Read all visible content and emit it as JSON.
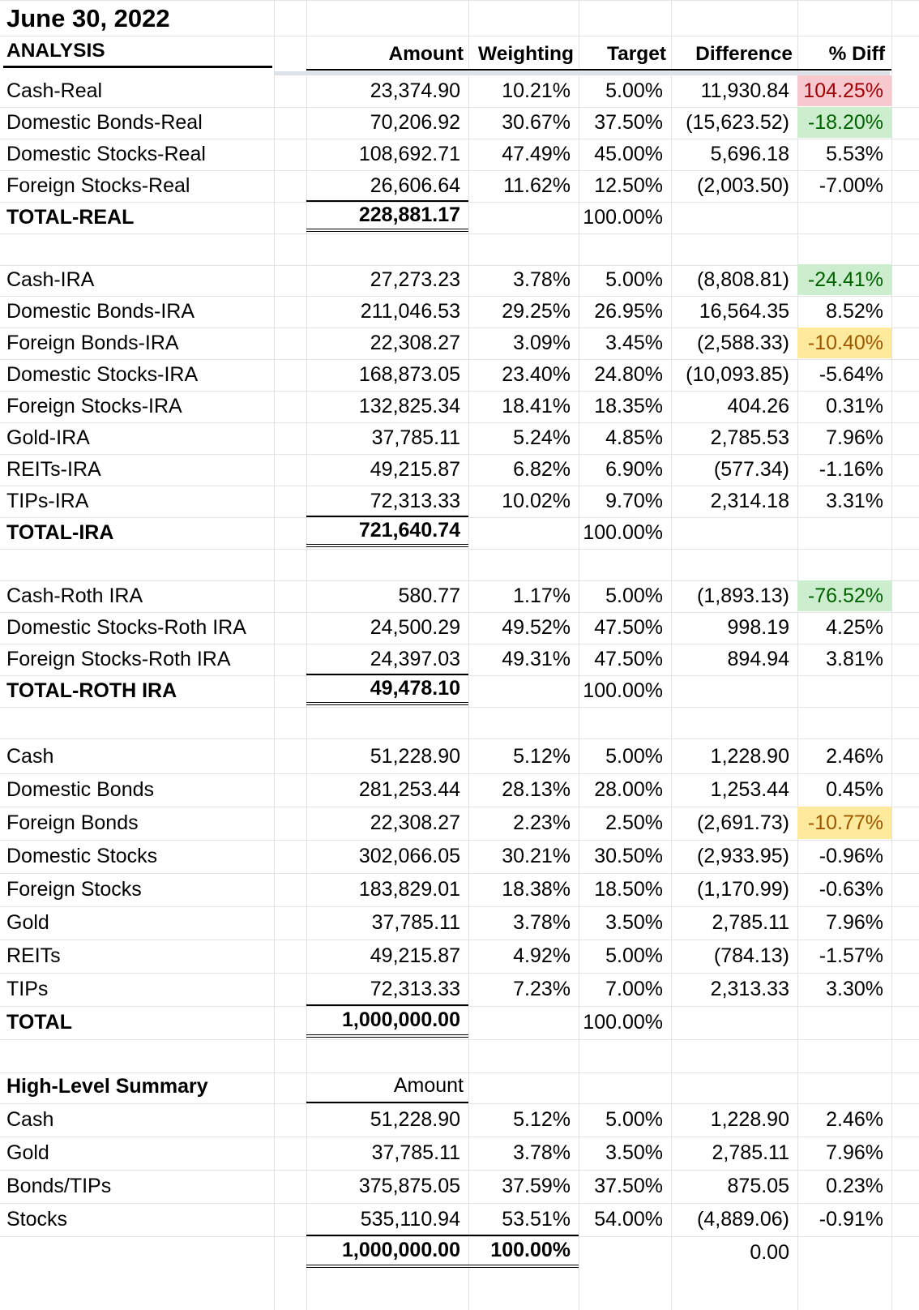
{
  "title": "June 30, 2022",
  "analysis_label": "ANALYSIS",
  "headers": {
    "amount": "Amount",
    "weighting": "Weighting",
    "target": "Target",
    "difference": "Difference",
    "pct_diff": "% Diff"
  },
  "sections": [
    {
      "rows": [
        {
          "label": "Cash-Real",
          "amount": "23,374.90",
          "weighting": "10.21%",
          "target": "5.00%",
          "difference": "11,930.84",
          "pct": "104.25%",
          "hl": "red"
        },
        {
          "label": "Domestic Bonds-Real",
          "amount": "70,206.92",
          "weighting": "30.67%",
          "target": "37.50%",
          "difference": "(15,623.52)",
          "pct": "-18.20%",
          "hl": "green"
        },
        {
          "label": "Domestic Stocks-Real",
          "amount": "108,692.71",
          "weighting": "47.49%",
          "target": "45.00%",
          "difference": "5,696.18",
          "pct": "5.53%",
          "hl": ""
        },
        {
          "label": "Foreign Stocks-Real",
          "amount": "26,606.64",
          "weighting": "11.62%",
          "target": "12.50%",
          "difference": "(2,003.50)",
          "pct": "-7.00%",
          "hl": ""
        }
      ],
      "total": {
        "label": "TOTAL-REAL",
        "amount": "228,881.17",
        "target": "100.00%"
      }
    },
    {
      "rows": [
        {
          "label": "Cash-IRA",
          "amount": "27,273.23",
          "weighting": "3.78%",
          "target": "5.00%",
          "difference": "(8,808.81)",
          "pct": "-24.41%",
          "hl": "green"
        },
        {
          "label": "Domestic Bonds-IRA",
          "amount": "211,046.53",
          "weighting": "29.25%",
          "target": "26.95%",
          "difference": "16,564.35",
          "pct": "8.52%",
          "hl": ""
        },
        {
          "label": "Foreign Bonds-IRA",
          "amount": "22,308.27",
          "weighting": "3.09%",
          "target": "3.45%",
          "difference": "(2,588.33)",
          "pct": "-10.40%",
          "hl": "yellow"
        },
        {
          "label": "Domestic Stocks-IRA",
          "amount": "168,873.05",
          "weighting": "23.40%",
          "target": "24.80%",
          "difference": "(10,093.85)",
          "pct": "-5.64%",
          "hl": ""
        },
        {
          "label": "Foreign Stocks-IRA",
          "amount": "132,825.34",
          "weighting": "18.41%",
          "target": "18.35%",
          "difference": "404.26",
          "pct": "0.31%",
          "hl": ""
        },
        {
          "label": "Gold-IRA",
          "amount": "37,785.11",
          "weighting": "5.24%",
          "target": "4.85%",
          "difference": "2,785.53",
          "pct": "7.96%",
          "hl": ""
        },
        {
          "label": "REITs-IRA",
          "amount": "49,215.87",
          "weighting": "6.82%",
          "target": "6.90%",
          "difference": "(577.34)",
          "pct": "-1.16%",
          "hl": ""
        },
        {
          "label": "TIPs-IRA",
          "amount": "72,313.33",
          "weighting": "10.02%",
          "target": "9.70%",
          "difference": "2,314.18",
          "pct": "3.31%",
          "hl": ""
        }
      ],
      "total": {
        "label": "TOTAL-IRA",
        "amount": "721,640.74",
        "target": "100.00%"
      }
    },
    {
      "rows": [
        {
          "label": "Cash-Roth IRA",
          "amount": "580.77",
          "weighting": "1.17%",
          "target": "5.00%",
          "difference": "(1,893.13)",
          "pct": "-76.52%",
          "hl": "green"
        },
        {
          "label": "Domestic Stocks-Roth IRA",
          "amount": "24,500.29",
          "weighting": "49.52%",
          "target": "47.50%",
          "difference": "998.19",
          "pct": "4.25%",
          "hl": ""
        },
        {
          "label": "Foreign Stocks-Roth IRA",
          "amount": "24,397.03",
          "weighting": "49.31%",
          "target": "47.50%",
          "difference": "894.94",
          "pct": "3.81%",
          "hl": ""
        }
      ],
      "total": {
        "label": "TOTAL-ROTH IRA",
        "amount": "49,478.10",
        "target": "100.00%"
      }
    },
    {
      "rows": [
        {
          "label": "Cash",
          "amount": "51,228.90",
          "weighting": "5.12%",
          "target": "5.00%",
          "difference": "1,228.90",
          "pct": "2.46%",
          "hl": ""
        },
        {
          "label": "Domestic Bonds",
          "amount": "281,253.44",
          "weighting": "28.13%",
          "target": "28.00%",
          "difference": "1,253.44",
          "pct": "0.45%",
          "hl": ""
        },
        {
          "label": "Foreign Bonds",
          "amount": "22,308.27",
          "weighting": "2.23%",
          "target": "2.50%",
          "difference": "(2,691.73)",
          "pct": "-10.77%",
          "hl": "yellow"
        },
        {
          "label": "Domestic Stocks",
          "amount": "302,066.05",
          "weighting": "30.21%",
          "target": "30.50%",
          "difference": "(2,933.95)",
          "pct": "-0.96%",
          "hl": ""
        },
        {
          "label": "Foreign Stocks",
          "amount": "183,829.01",
          "weighting": "18.38%",
          "target": "18.50%",
          "difference": "(1,170.99)",
          "pct": "-0.63%",
          "hl": ""
        },
        {
          "label": "Gold",
          "amount": "37,785.11",
          "weighting": "3.78%",
          "target": "3.50%",
          "difference": "2,785.11",
          "pct": "7.96%",
          "hl": ""
        },
        {
          "label": "REITs",
          "amount": "49,215.87",
          "weighting": "4.92%",
          "target": "5.00%",
          "difference": "(784.13)",
          "pct": "-1.57%",
          "hl": ""
        },
        {
          "label": "TIPs",
          "amount": "72,313.33",
          "weighting": "7.23%",
          "target": "7.00%",
          "difference": "2,313.33",
          "pct": "3.30%",
          "hl": ""
        }
      ],
      "total": {
        "label": "TOTAL",
        "amount": "1,000,000.00",
        "target": "100.00%"
      }
    }
  ],
  "summary": {
    "label": "High-Level Summary",
    "amount_header": "Amount",
    "rows": [
      {
        "label": "Cash",
        "amount": "51,228.90",
        "weighting": "5.12%",
        "target": "5.00%",
        "difference": "1,228.90",
        "pct": "2.46%"
      },
      {
        "label": "Gold",
        "amount": "37,785.11",
        "weighting": "3.78%",
        "target": "3.50%",
        "difference": "2,785.11",
        "pct": "7.96%"
      },
      {
        "label": "Bonds/TIPs",
        "amount": "375,875.05",
        "weighting": "37.59%",
        "target": "37.50%",
        "difference": "875.05",
        "pct": "0.23%"
      },
      {
        "label": "Stocks",
        "amount": "535,110.94",
        "weighting": "53.51%",
        "target": "54.00%",
        "difference": "(4,889.06)",
        "pct": "-0.91%"
      }
    ],
    "total": {
      "amount": "1,000,000.00",
      "weighting": "100.00%",
      "difference": "0.00"
    }
  },
  "highlight_colors": {
    "red": "#f7c9ce",
    "green": "#cdeece",
    "yellow": "#fdea9c"
  }
}
